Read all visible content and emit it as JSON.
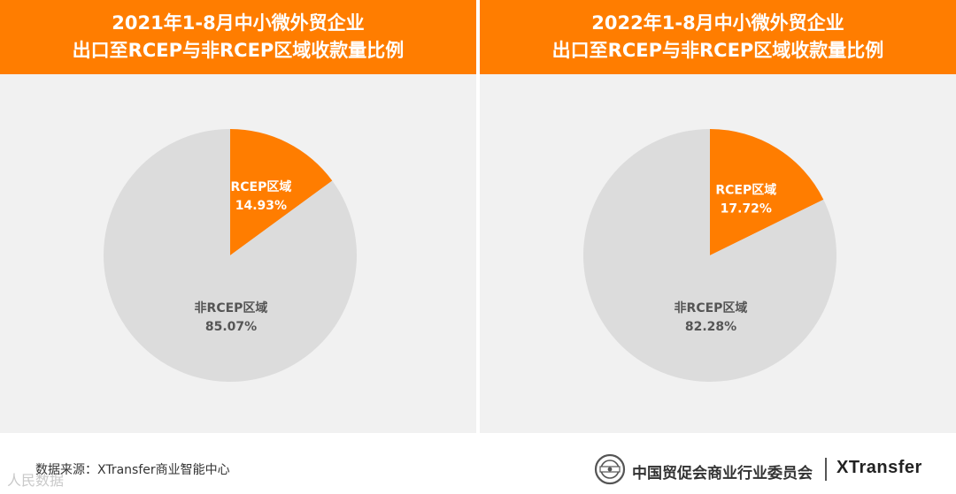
{
  "chart_data": [
    {
      "type": "pie",
      "title_line1": "2021年1-8月中小微外贸企业",
      "title_line2": "出口至RCEP与非RCEP区域收款量比例",
      "slices": [
        {
          "label": "RCEP区域",
          "value": 14.93,
          "value_text": "14.93%",
          "color": "#ff7d00"
        },
        {
          "label": "非RCEP区域",
          "value": 85.07,
          "value_text": "85.07%",
          "color": "#dcdcdc"
        }
      ]
    },
    {
      "type": "pie",
      "title_line1": "2022年1-8月中小微外贸企业",
      "title_line2": "出口至RCEP与非RCEP区域收款量比例",
      "slices": [
        {
          "label": "RCEP区域",
          "value": 17.72,
          "value_text": "17.72%",
          "color": "#ff7d00"
        },
        {
          "label": "非RCEP区域",
          "value": 82.28,
          "value_text": "82.28%",
          "color": "#dcdcdc"
        }
      ]
    }
  ],
  "footer": {
    "source": "数据来源：XTransfer商业智能中心",
    "org_name": "中国贸促会商业行业委员会",
    "brand": "XTransfer",
    "watermark": "人民数据"
  },
  "colors": {
    "accent": "#ff7d00",
    "panel_bg": "#f1f1f1",
    "rest_slice": "#dcdcdc"
  }
}
